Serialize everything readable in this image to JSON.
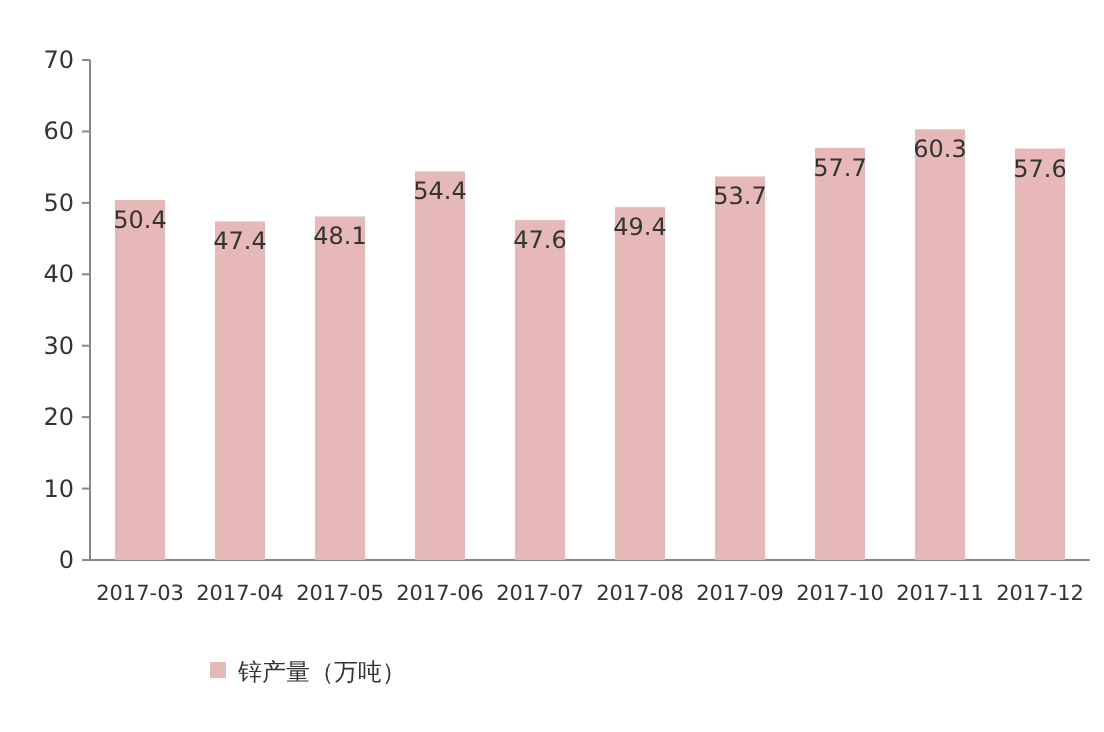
{
  "chart_data": {
    "type": "bar",
    "categories": [
      "2017-03",
      "2017-04",
      "2017-05",
      "2017-06",
      "2017-07",
      "2017-08",
      "2017-09",
      "2017-10",
      "2017-11",
      "2017-12"
    ],
    "series": [
      {
        "name": "锌产量（万吨）",
        "color": "#e6b9b8",
        "values": [
          50.4,
          47.4,
          48.1,
          54.4,
          47.6,
          49.4,
          53.7,
          57.7,
          60.3,
          57.6
        ]
      }
    ],
    "ylim": [
      0,
      70
    ],
    "yticks": [
      0,
      10,
      20,
      30,
      40,
      50,
      60,
      70
    ],
    "data_labels": true,
    "legend": "bottom"
  }
}
